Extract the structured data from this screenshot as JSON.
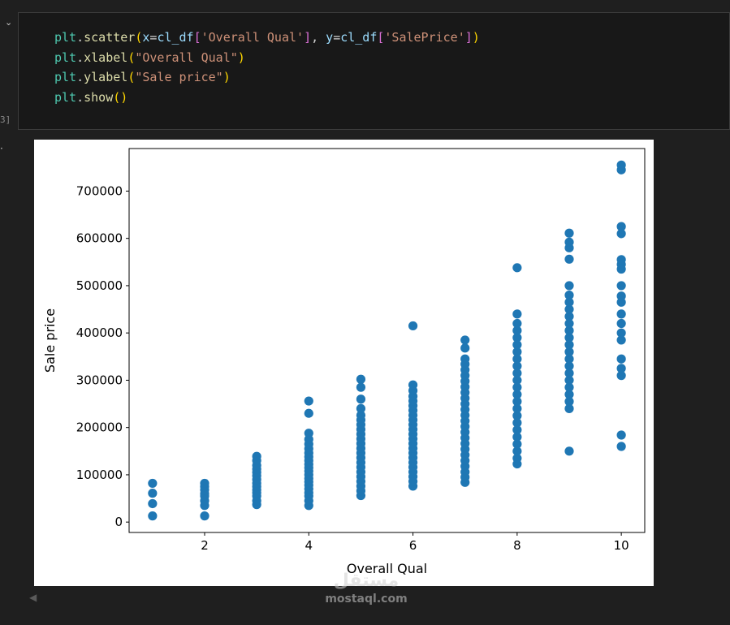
{
  "cell": {
    "execution_count": "3]",
    "code_lines": [
      [
        {
          "t": "plt",
          "c": "k-var"
        },
        {
          "t": ".",
          "c": "k-plain"
        },
        {
          "t": "scatter",
          "c": "k-fn"
        },
        {
          "t": "(",
          "c": "k-par1"
        },
        {
          "t": "x",
          "c": "k-arg"
        },
        {
          "t": "=",
          "c": "k-plain"
        },
        {
          "t": "cl_df",
          "c": "k-arg"
        },
        {
          "t": "[",
          "c": "k-par2"
        },
        {
          "t": "'Overall Qual'",
          "c": "k-str"
        },
        {
          "t": "]",
          "c": "k-par2"
        },
        {
          "t": ", ",
          "c": "k-plain"
        },
        {
          "t": "y",
          "c": "k-arg"
        },
        {
          "t": "=",
          "c": "k-plain"
        },
        {
          "t": "cl_df",
          "c": "k-arg"
        },
        {
          "t": "[",
          "c": "k-par2"
        },
        {
          "t": "'SalePrice'",
          "c": "k-str"
        },
        {
          "t": "]",
          "c": "k-par2"
        },
        {
          "t": ")",
          "c": "k-par1"
        }
      ],
      [
        {
          "t": "plt",
          "c": "k-var"
        },
        {
          "t": ".",
          "c": "k-plain"
        },
        {
          "t": "xlabel",
          "c": "k-fn"
        },
        {
          "t": "(",
          "c": "k-par1"
        },
        {
          "t": "\"Overall Qual\"",
          "c": "k-str"
        },
        {
          "t": ")",
          "c": "k-par1"
        }
      ],
      [
        {
          "t": "plt",
          "c": "k-var"
        },
        {
          "t": ".",
          "c": "k-plain"
        },
        {
          "t": "ylabel",
          "c": "k-fn"
        },
        {
          "t": "(",
          "c": "k-par1"
        },
        {
          "t": "\"Sale price\"",
          "c": "k-str"
        },
        {
          "t": ")",
          "c": "k-par1"
        }
      ],
      [
        {
          "t": "plt",
          "c": "k-var"
        },
        {
          "t": ".",
          "c": "k-plain"
        },
        {
          "t": "show",
          "c": "k-fn"
        },
        {
          "t": "()",
          "c": "k-par1"
        }
      ]
    ]
  },
  "watermark": {
    "logo": "مستقل",
    "url": "mostaql.com"
  },
  "chart_data": {
    "type": "scatter",
    "title": "",
    "xlabel": "Overall Qual",
    "ylabel": "Sale price",
    "xlim": [
      0.55,
      10.45
    ],
    "ylim": [
      -22000,
      790000
    ],
    "xticks": [
      2,
      4,
      6,
      8,
      10
    ],
    "yticks": [
      0,
      100000,
      200000,
      300000,
      400000,
      500000,
      600000,
      700000
    ],
    "marker_color": "#1f77b4",
    "grid": false,
    "series": [
      {
        "x": 1,
        "values": [
          13000,
          39000,
          61000,
          82000
        ]
      },
      {
        "x": 2,
        "values": [
          13000,
          35000,
          45000,
          55000,
          60000,
          68000,
          75000,
          82000
        ]
      },
      {
        "x": 3,
        "values": [
          37000,
          45000,
          55000,
          62000,
          68000,
          75000,
          82000,
          90000,
          98000,
          105000,
          112000,
          120000,
          130000,
          139000
        ]
      },
      {
        "x": 4,
        "values": [
          35000,
          45000,
          55000,
          62000,
          70000,
          78000,
          85000,
          92000,
          100000,
          108000,
          115000,
          122000,
          130000,
          138000,
          146000,
          155000,
          165000,
          175000,
          188000,
          230000,
          256000
        ]
      },
      {
        "x": 5,
        "values": [
          56000,
          66000,
          76000,
          86000,
          96000,
          106000,
          116000,
          126000,
          136000,
          146000,
          156000,
          166000,
          176000,
          186000,
          196000,
          206000,
          216000,
          226000,
          240000,
          260000,
          285000,
          302000
        ]
      },
      {
        "x": 6,
        "values": [
          76000,
          86000,
          96000,
          106000,
          116000,
          126000,
          136000,
          146000,
          156000,
          166000,
          176000,
          186000,
          196000,
          206000,
          216000,
          226000,
          236000,
          246000,
          256000,
          266000,
          278000,
          290000,
          415000
        ]
      },
      {
        "x": 7,
        "values": [
          84000,
          95000,
          106000,
          118000,
          130000,
          142000,
          154000,
          166000,
          178000,
          190000,
          202000,
          214000,
          226000,
          238000,
          250000,
          262000,
          274000,
          286000,
          298000,
          310000,
          322000,
          334000,
          345000,
          368000,
          385000
        ]
      },
      {
        "x": 8,
        "values": [
          123000,
          135000,
          150000,
          165000,
          180000,
          195000,
          210000,
          225000,
          240000,
          255000,
          270000,
          285000,
          300000,
          315000,
          330000,
          345000,
          360000,
          375000,
          390000,
          405000,
          420000,
          440000,
          538000
        ]
      },
      {
        "x": 9,
        "values": [
          150000,
          240000,
          255000,
          270000,
          285000,
          300000,
          315000,
          330000,
          345000,
          360000,
          375000,
          390000,
          405000,
          420000,
          435000,
          450000,
          465000,
          480000,
          500000,
          556000,
          580000,
          592000,
          611000
        ]
      },
      {
        "x": 10,
        "values": [
          160000,
          184000,
          310000,
          325000,
          345000,
          385000,
          400000,
          420000,
          440000,
          465000,
          478000,
          500000,
          535000,
          545000,
          555000,
          610000,
          625000,
          745000,
          755000
        ]
      }
    ]
  }
}
